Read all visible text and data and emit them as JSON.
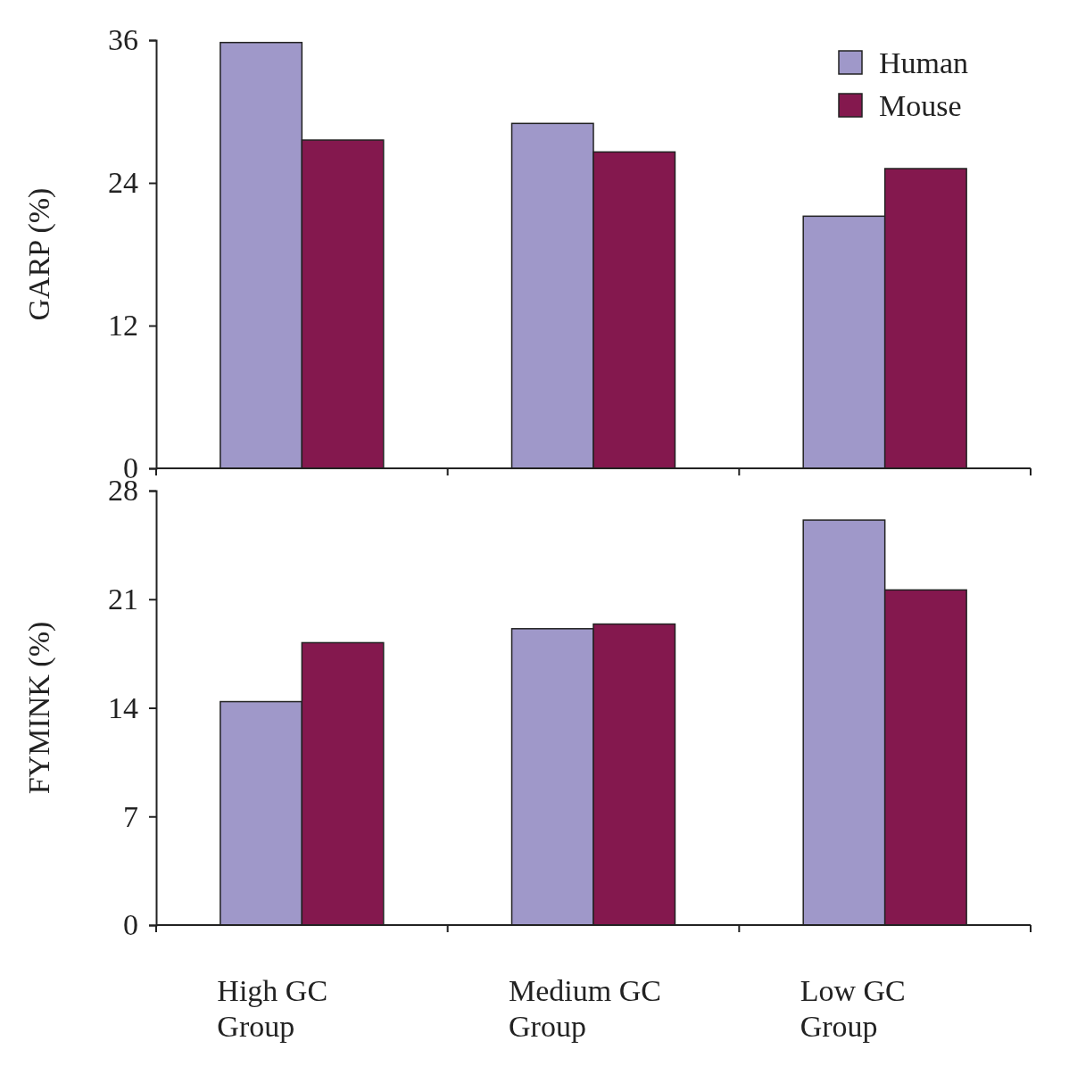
{
  "chart_data": [
    {
      "type": "bar",
      "ylabel": "GARP (%)",
      "categories": [
        null,
        null,
        null
      ],
      "series": [
        {
          "name": "Human",
          "color": "#9f98c9",
          "values": [
            35.8,
            29.0,
            21.2
          ]
        },
        {
          "name": "Mouse",
          "color": "#84184e",
          "values": [
            27.6,
            26.6,
            25.2
          ]
        }
      ],
      "ylim": [
        0,
        36
      ],
      "yticks": [
        0,
        12,
        24,
        36
      ],
      "legend": "top right",
      "tick_labels": "y"
    },
    {
      "type": "bar",
      "ylabel": "FYMINK (%)",
      "categories": [
        "High GC Group",
        "Medium GC Group",
        "Low GC Group"
      ],
      "series": [
        {
          "color": "#9f98c9",
          "values": [
            14.4,
            19.1,
            26.1
          ]
        },
        {
          "color": "#84184e",
          "values": [
            18.2,
            19.4,
            21.6
          ]
        }
      ],
      "ylim": [
        0,
        28
      ],
      "yticks": [
        0,
        7,
        14,
        21,
        28
      ]
    }
  ]
}
